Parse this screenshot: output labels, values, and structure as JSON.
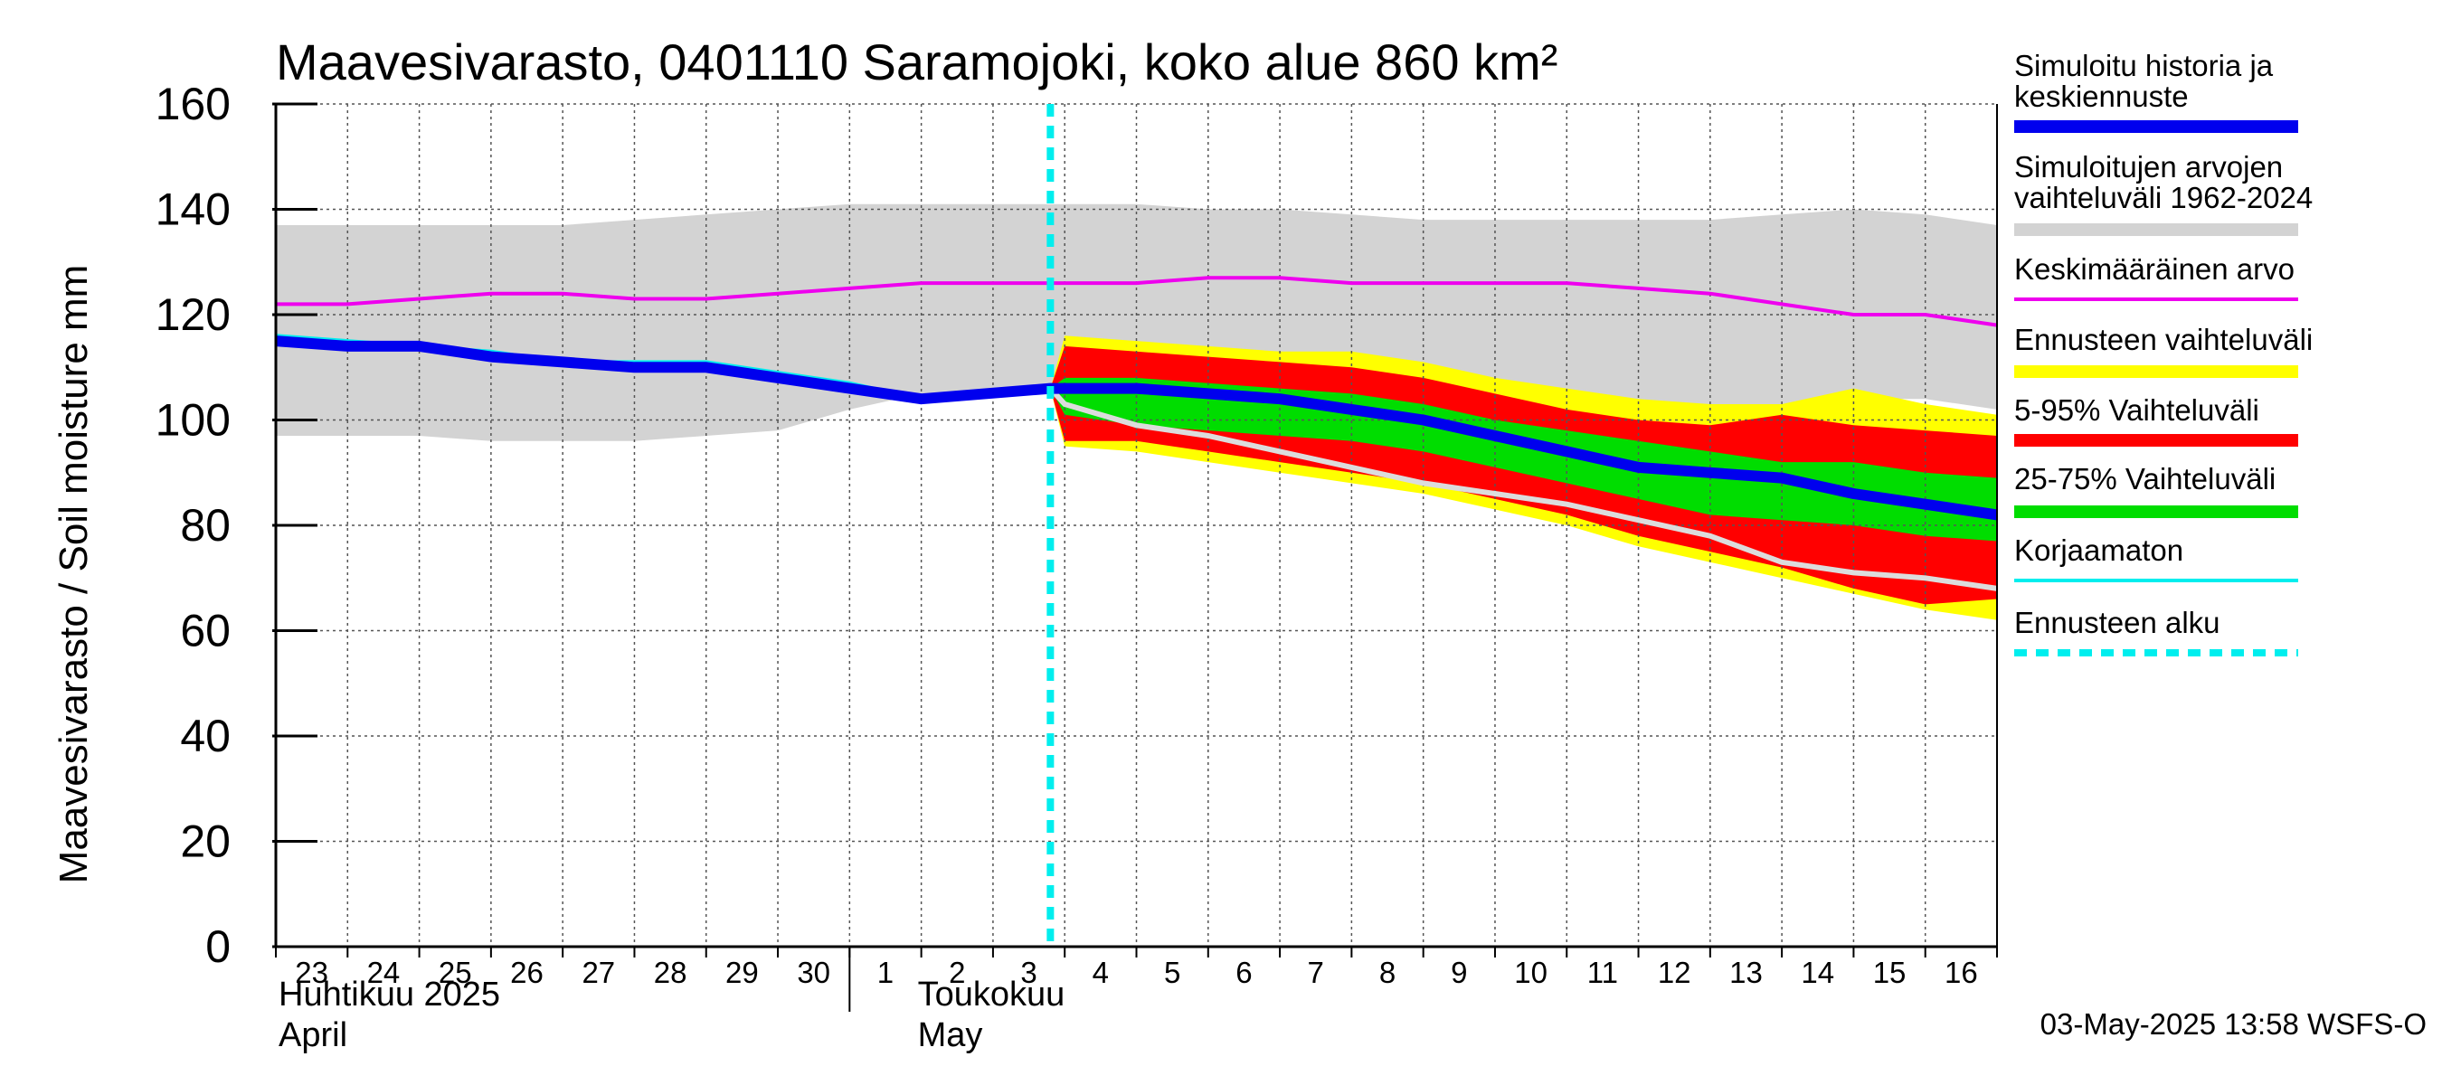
{
  "chart_data": {
    "type": "area",
    "title": "Maavesivarasto, 0401110 Saramojoki, koko alue 860 km²",
    "ylabel": "Maavesivarasto / Soil moisture   mm",
    "ylim": [
      0,
      160
    ],
    "yticks": [
      0,
      20,
      40,
      60,
      80,
      100,
      120,
      140,
      160
    ],
    "grid": true,
    "x_days": [
      "23",
      "24",
      "25",
      "26",
      "27",
      "28",
      "29",
      "30",
      "1",
      "2",
      "3",
      "4",
      "5",
      "6",
      "7",
      "8",
      "9",
      "10",
      "11",
      "12",
      "13",
      "14",
      "15",
      "16"
    ],
    "month_labels": [
      {
        "fi": "Huhtikuu  2025",
        "en": "April"
      },
      {
        "fi": "Toukokuu",
        "en": "May"
      }
    ],
    "forecast_start_index": 10.8,
    "x_index": [
      0,
      1,
      2,
      3,
      4,
      5,
      6,
      7,
      8,
      9,
      10.8,
      11,
      12,
      13,
      14,
      15,
      16,
      17,
      18,
      19,
      20,
      21,
      22,
      23,
      24
    ],
    "series": {
      "range_hist_upper": [
        137,
        137,
        137,
        137,
        137,
        138,
        139,
        140,
        141,
        141,
        141,
        141,
        141,
        140,
        140,
        139,
        138,
        138,
        138,
        138,
        138,
        139,
        140,
        139,
        137
      ],
      "range_hist_lower": [
        97,
        97,
        97,
        96,
        96,
        96,
        97,
        98,
        102,
        105,
        106,
        106,
        106,
        105,
        105,
        104,
        104,
        103,
        103,
        103,
        103,
        103,
        104,
        104,
        102
      ],
      "mean": [
        122,
        122,
        123,
        124,
        124,
        123,
        123,
        124,
        125,
        126,
        126,
        126,
        126,
        127,
        127,
        126,
        126,
        126,
        126,
        125,
        124,
        122,
        120,
        120,
        118
      ],
      "simulated": [
        115,
        114,
        114,
        112,
        111,
        110,
        110,
        108,
        106,
        104,
        106,
        106,
        106,
        105,
        104,
        102,
        100,
        97,
        94,
        91,
        90,
        89,
        86,
        84,
        82
      ],
      "uncorrected": [
        116,
        115,
        114,
        113,
        111,
        111,
        111,
        109,
        107,
        104,
        106,
        106,
        106,
        105,
        104,
        102,
        100,
        97,
        94,
        91,
        90,
        89,
        86,
        84,
        82
      ],
      "forecast_x": [
        10.8,
        11,
        12,
        13,
        14,
        15,
        16,
        17,
        18,
        19,
        20,
        21,
        22,
        23,
        24
      ],
      "forecast_max": [
        106,
        116,
        115,
        114,
        113,
        113,
        111,
        108,
        106,
        104,
        103,
        103,
        106,
        103,
        101
      ],
      "p95": [
        106,
        114,
        113,
        112,
        111,
        110,
        108,
        105,
        102,
        100,
        99,
        101,
        99,
        98,
        97
      ],
      "p75": [
        106,
        108,
        108,
        107,
        106,
        105,
        103,
        100,
        98,
        96,
        94,
        92,
        92,
        90,
        89
      ],
      "p25": [
        106,
        101,
        99,
        98,
        97,
        96,
        94,
        91,
        88,
        85,
        82,
        81,
        80,
        78,
        77
      ],
      "p5": [
        106,
        96,
        96,
        94,
        92,
        90,
        88,
        85,
        82,
        78,
        75,
        72,
        68,
        65,
        66
      ],
      "forecast_min": [
        106,
        95,
        94,
        92,
        90,
        88,
        86,
        83,
        80,
        76,
        73,
        70,
        67,
        64,
        62
      ],
      "uncorrected_forecast": [
        106,
        103,
        99,
        97,
        94,
        91,
        88,
        86,
        84,
        81,
        78,
        73,
        71,
        70,
        68
      ]
    },
    "legend": [
      {
        "label": "Simuloitu historia ja keskiennuste",
        "color": "#0000ee",
        "style": "thick"
      },
      {
        "label": "Simuloitujen arvojen vaihteluväli 1962-2024",
        "color": "#d3d3d3",
        "style": "thick"
      },
      {
        "label": "Keskimääräinen arvo",
        "color": "#ee00ee",
        "style": "line"
      },
      {
        "label": "Ennusteen vaihteluväli",
        "color": "#ffff00",
        "style": "thick"
      },
      {
        "label": "5-95% Vaihteluväli",
        "color": "#ff0000",
        "style": "thick"
      },
      {
        "label": "25-75% Vaihteluväli",
        "color": "#00dd00",
        "style": "thick"
      },
      {
        "label": "Korjaamaton",
        "color": "#00eeee",
        "style": "line"
      },
      {
        "label": "Ennusteen alku",
        "color": "#00eeee",
        "style": "dashed"
      }
    ],
    "footer": "03-May-2025 13:58 WSFS-O"
  }
}
